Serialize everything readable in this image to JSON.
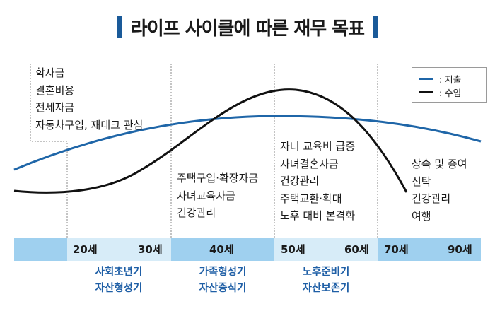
{
  "title": "라이프 사이클에 따른 재무 목표",
  "colors": {
    "title_bar": "#1a5a99",
    "expense_line": "#1f66a8",
    "income_line": "#111111",
    "band_dark": "#9fd0ef",
    "band_light": "#d7ecf8",
    "phase_text": "#1f5fa6"
  },
  "legend": {
    "expense": ": 지출",
    "income": ": 수입"
  },
  "stages": [
    {
      "items": [
        "학자금",
        "결혼비용",
        "전세자금",
        "자동차구입, 재테크 관심"
      ]
    },
    {
      "items": [
        "주택구입·확장자금",
        "자녀교육자금",
        "건강관리"
      ]
    },
    {
      "items": [
        "자녀 교육비 급증",
        "자녀결혼자금",
        "건강관리",
        "주택교환·확대",
        "노후 대비 본격화"
      ]
    },
    {
      "items": [
        "상속 및 증여",
        "신탁",
        "건강관리",
        "여행"
      ]
    }
  ],
  "age_labels": [
    "20세",
    "30세",
    "40세",
    "50세",
    "60세",
    "70세",
    "90세"
  ],
  "phases": [
    {
      "line1": "사회초년기",
      "line2": "자산형성기"
    },
    {
      "line1": "가족형성기",
      "line2": "자산증식기"
    },
    {
      "line1": "노후준비기",
      "line2": "자산보존기"
    }
  ]
}
